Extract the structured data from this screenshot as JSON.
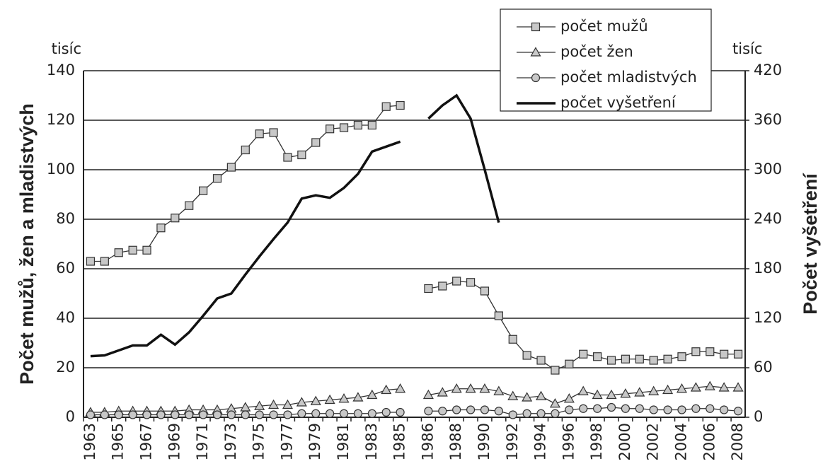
{
  "chart_data": {
    "type": "line",
    "y_axis_label": "Počet mužů, žen a mladistvých",
    "y2_axis_label": "Počet vyšetření",
    "y_unit_label": "tisíc",
    "y2_unit_label": "tisíc",
    "categories": [
      "1963",
      null,
      "1965",
      null,
      "1967",
      null,
      "1969",
      null,
      "1971",
      null,
      "1973",
      null,
      "1975",
      null,
      "1977",
      null,
      "1979",
      null,
      "1981",
      null,
      "1983",
      null,
      "1985",
      null,
      "1986",
      null,
      "1988",
      null,
      "1990",
      null,
      "1992",
      null,
      "1994",
      null,
      "1996",
      null,
      "1998",
      null,
      "2000",
      null,
      "2002",
      null,
      "2004",
      null,
      "2006",
      null,
      "2008"
    ],
    "ylim": [
      0,
      140
    ],
    "yticks": [
      0,
      20,
      40,
      60,
      80,
      100,
      120,
      140
    ],
    "y2lim": [
      0,
      420
    ],
    "y2ticks": [
      0,
      60,
      120,
      180,
      240,
      300,
      360,
      420
    ],
    "grid": true,
    "series": [
      {
        "name": "počet mužů",
        "color": "#333333",
        "marker": "square",
        "marker_color": "#c8c8c8",
        "values": [
          63,
          63,
          66.5,
          67.5,
          67.5,
          76.5,
          80.5,
          85.5,
          91.5,
          96.5,
          101,
          108,
          114.5,
          115,
          105,
          106,
          111,
          116.5,
          117,
          118,
          118,
          125.5,
          126,
          null,
          52,
          53,
          55,
          54.5,
          51,
          41,
          31.5,
          25,
          23,
          19,
          21.5,
          25.5,
          24.5,
          23,
          23.5,
          23.5,
          23,
          23.5,
          24.5,
          26.5,
          26.5,
          25.5,
          25.5
        ]
      },
      {
        "name": "počet žen",
        "color": "#333333",
        "marker": "triangle",
        "marker_color": "#c8c8c8",
        "values": [
          2,
          2,
          2.5,
          2.5,
          2.5,
          2.5,
          2.5,
          3,
          3,
          3,
          3.5,
          4,
          4.5,
          5,
          5,
          6,
          6.5,
          7,
          7.5,
          8,
          9,
          11,
          11.5,
          null,
          9,
          10,
          11.5,
          11.5,
          11.5,
          10.5,
          8.5,
          8,
          8.5,
          5.5,
          7.5,
          10.5,
          9,
          9,
          9.5,
          10,
          10.5,
          11,
          11.5,
          12,
          12.5,
          12,
          12
        ]
      },
      {
        "name": "počet mladistvých",
        "color": "#333333",
        "marker": "circle",
        "marker_color": "#c8c8c8",
        "values": [
          1,
          1,
          1,
          1,
          1,
          1,
          1,
          1,
          1,
          1,
          1,
          1,
          1,
          1,
          1,
          1.5,
          1.5,
          1.5,
          1.5,
          1.5,
          1.5,
          2,
          2,
          null,
          2.5,
          2.5,
          3,
          3,
          3,
          2.5,
          1,
          1.5,
          1.5,
          1.5,
          3,
          3.5,
          3.5,
          4,
          3.5,
          3.5,
          3,
          3,
          3,
          3.5,
          3.5,
          3,
          2.5
        ]
      },
      {
        "name": "počet vyšetření",
        "color": "#111111",
        "axis": "y2",
        "values": [
          74,
          75,
          81,
          87,
          87,
          100,
          88,
          103,
          123,
          144,
          150,
          173,
          195,
          216,
          236,
          265,
          269,
          266,
          278,
          295,
          322,
          328,
          334,
          null,
          362,
          378,
          390,
          362,
          300,
          236,
          null,
          null,
          null,
          null,
          null,
          null,
          null,
          null,
          null,
          null,
          null,
          null,
          null,
          null,
          null,
          null,
          null
        ]
      }
    ]
  }
}
